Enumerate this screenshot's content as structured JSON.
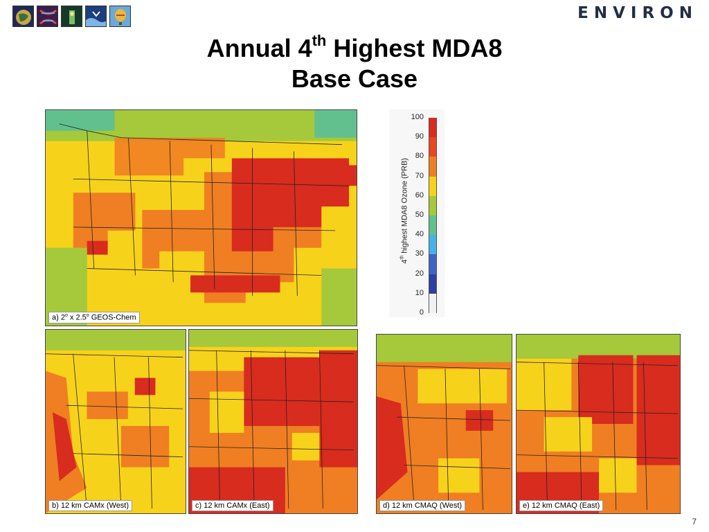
{
  "header": {
    "brand": "ENVIRON",
    "logos": [
      "globe-logo-icon",
      "dna-logo-icon",
      "lab-logo-icon",
      "ocean-logo-icon",
      "balloon-logo-icon"
    ]
  },
  "title": {
    "line1_pre": "Annual 4",
    "line1_sup": "th",
    "line1_post": " Highest MDA8",
    "line2": "Base Case"
  },
  "colorbar": {
    "label_pre": "4",
    "label_sup": "th",
    "label_post": " highest MDA8 Ozone (PRB)",
    "ticks": [
      "100",
      "90",
      "80",
      "70",
      "60",
      "50",
      "40",
      "30",
      "20",
      "10",
      "0"
    ],
    "colors": [
      "#d82c1f",
      "#e8471f",
      "#ef7f22",
      "#f7d21b",
      "#a5c93a",
      "#62c08f",
      "#45b3e6",
      "#3e63c5",
      "#2d3fa1",
      "#f1f1f1"
    ]
  },
  "panels": {
    "a": {
      "label_pre": "a) 2",
      "label_sup1": "o",
      "label_mid": " x 2.5",
      "label_sup2": "o",
      "label_post": " GEOS-Chem"
    },
    "b": {
      "label": "b) 12 km CAMx (West)"
    },
    "c": {
      "label": "c) 12 km CAMx (East)"
    },
    "d": {
      "label": "d) 12 km CMAQ (West)"
    },
    "e": {
      "label": "e) 12 km CMAQ (East)"
    }
  },
  "footer": {
    "page": "7"
  }
}
